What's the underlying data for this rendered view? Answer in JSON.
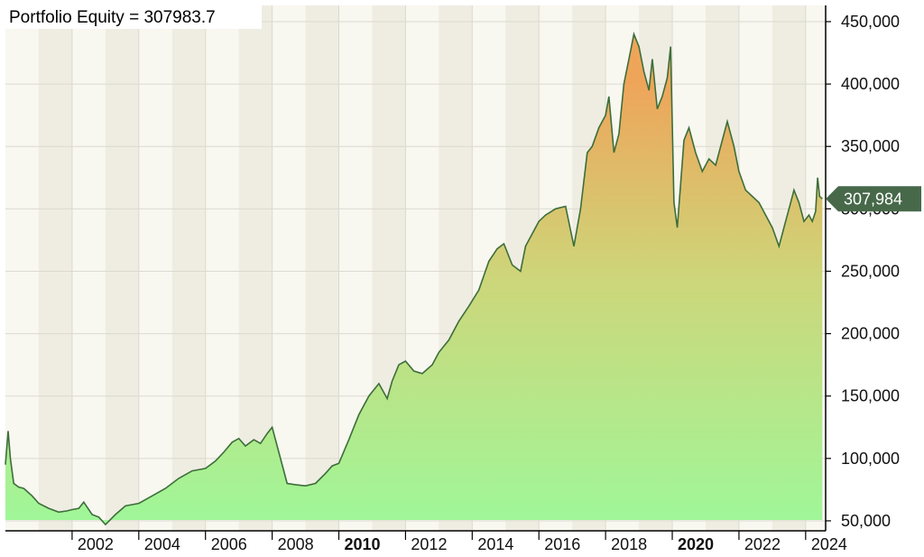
{
  "title": "Portfolio Equity = 307983.7",
  "colors": {
    "band_light": "#f8f7f0",
    "band_dark": "#efede2",
    "grid": "#dcdad0",
    "line": "#3d6e3a",
    "fill_top": "#eea55a",
    "fill_mid": "#cdd67a",
    "fill_bottom": "#9ff799",
    "marker": "#47694a",
    "axis": "#000000"
  },
  "chart_data": {
    "type": "area",
    "title": "Portfolio Equity = 307983.7",
    "xlabel": "",
    "ylabel": "",
    "xlim": [
      2000.0,
      2024.6
    ],
    "ylim": [
      42000,
      463000
    ],
    "y_ticks": [
      50000,
      100000,
      150000,
      200000,
      250000,
      300000,
      350000,
      400000,
      450000
    ],
    "y_tick_labels": [
      "50,000",
      "100,000",
      "150,000",
      "200,000",
      "250,000",
      "300,000",
      "350,000",
      "400,000",
      "450,000"
    ],
    "x_ticks": [
      2002,
      2004,
      2006,
      2008,
      2010,
      2012,
      2014,
      2016,
      2018,
      2020,
      2022,
      2024
    ],
    "x_tick_labels": [
      "2002",
      "2004",
      "2006",
      "2008",
      "2010",
      "2012",
      "2014",
      "2016",
      "2018",
      "2020",
      "2022",
      "2024"
    ],
    "x_tick_bold": [
      "2010",
      "2020"
    ],
    "grid": true,
    "last_value": 307983.7,
    "last_value_label": "307,984",
    "series": [
      {
        "x": [
          2000.0,
          2000.08,
          2000.15,
          2000.25,
          2000.4,
          2000.55,
          2000.8,
          2001.0,
          2001.3,
          2001.6,
          2001.85,
          2002.0,
          2002.2,
          2002.35,
          2002.6,
          2002.8,
          2003.0,
          2003.3,
          2003.6,
          2004.0,
          2004.4,
          2004.8,
          2005.2,
          2005.6,
          2006.0,
          2006.3,
          2006.55,
          2006.8,
          2007.0,
          2007.2,
          2007.45,
          2007.65,
          2007.85,
          2008.0,
          2008.2,
          2008.45,
          2008.7,
          2009.0,
          2009.3,
          2009.6,
          2009.8,
          2010.0,
          2010.3,
          2010.6,
          2010.9,
          2011.2,
          2011.45,
          2011.6,
          2011.8,
          2012.0,
          2012.25,
          2012.5,
          2012.8,
          2013.0,
          2013.3,
          2013.6,
          2013.9,
          2014.2,
          2014.5,
          2014.75,
          2014.95,
          2015.2,
          2015.45,
          2015.6,
          2015.8,
          2016.0,
          2016.2,
          2016.5,
          2016.8,
          2017.05,
          2017.25,
          2017.45,
          2017.6,
          2017.8,
          2018.0,
          2018.1,
          2018.25,
          2018.4,
          2018.55,
          2018.7,
          2018.85,
          2019.0,
          2019.15,
          2019.3,
          2019.4,
          2019.55,
          2019.7,
          2019.85,
          2019.95,
          2020.05,
          2020.15,
          2020.25,
          2020.35,
          2020.5,
          2020.7,
          2020.9,
          2021.1,
          2021.3,
          2021.5,
          2021.65,
          2021.85,
          2022.0,
          2022.2,
          2022.4,
          2022.6,
          2022.8,
          2023.0,
          2023.2,
          2023.35,
          2023.5,
          2023.65,
          2023.8,
          2023.95,
          2024.1,
          2024.2,
          2024.3,
          2024.36,
          2024.42,
          2024.5
        ],
        "y": [
          95000,
          122000,
          100000,
          80000,
          77000,
          76000,
          70000,
          64000,
          60000,
          57000,
          58000,
          59000,
          60000,
          65000,
          55000,
          53000,
          47000,
          55000,
          62000,
          64000,
          70000,
          76000,
          84000,
          90000,
          92000,
          98000,
          105000,
          113000,
          116000,
          110000,
          115000,
          112000,
          120000,
          125000,
          105000,
          80000,
          79000,
          78000,
          80000,
          88000,
          94000,
          96000,
          115000,
          135000,
          150000,
          160000,
          148000,
          162000,
          175000,
          178000,
          170000,
          168000,
          175000,
          185000,
          195000,
          210000,
          222000,
          235000,
          258000,
          268000,
          272000,
          255000,
          250000,
          270000,
          280000,
          290000,
          295000,
          300000,
          302000,
          270000,
          300000,
          345000,
          350000,
          365000,
          375000,
          390000,
          345000,
          360000,
          400000,
          420000,
          440000,
          430000,
          410000,
          395000,
          420000,
          380000,
          390000,
          405000,
          430000,
          305000,
          285000,
          320000,
          355000,
          365000,
          345000,
          330000,
          340000,
          335000,
          355000,
          370000,
          350000,
          330000,
          315000,
          310000,
          305000,
          295000,
          285000,
          270000,
          285000,
          300000,
          315000,
          305000,
          290000,
          295000,
          290000,
          298000,
          325000,
          310000,
          307984
        ]
      }
    ]
  }
}
